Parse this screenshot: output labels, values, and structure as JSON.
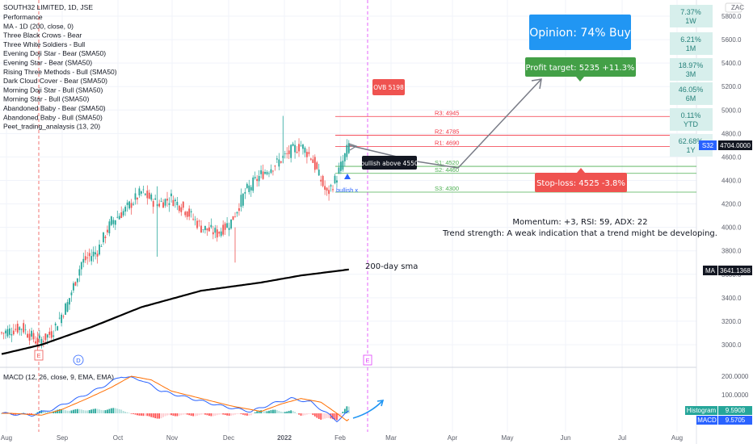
{
  "legend": {
    "symbol": "SOUTH32 LIMITED, 1D, JSE",
    "items": [
      "Performance",
      "MA - 1D (200, close, 0)",
      "Three Black Crows - Bear",
      "Three White Soldiers - Bull",
      "Evening Doji Star - Bear (SMA50)",
      "Evening Star - Bear (SMA50)",
      "Rising Three Methods - Bull (SMA50)",
      "Dark Cloud Cover - Bear (SMA50)",
      "Morning Doji Star - Bull (SMA50)",
      "Morning Star - Bull (SMA50)",
      "Abandoned Baby - Bear (SMA50)",
      "Abandoned Baby - Bull (SMA50)",
      "Peet_trading_analaysis (13, 20)"
    ]
  },
  "currency": "ZAC",
  "performance": [
    {
      "value": "7.37%",
      "period": "1W"
    },
    {
      "value": "6.21%",
      "period": "1M"
    },
    {
      "value": "18.97%",
      "period": "3M"
    },
    {
      "value": "46.05%",
      "period": "6M"
    },
    {
      "value": "0.11%",
      "period": "YTD"
    },
    {
      "value": "62.68%",
      "period": "1Y"
    }
  ],
  "opinion": "Opinion: 74% Buy",
  "profit_target": "Profit target: 5235 +11.3%",
  "stop_loss": "Stop-loss: 4525 -3.8%",
  "ovb_label": "OVB 5198",
  "bullish_tag": "bullish above 4550",
  "bullish_x": "bullish x",
  "momentum": "Momentum: +3, RSI: 59, ADX: 22",
  "trend_strength": "Trend strength: A weak indication that a trend might be developing.",
  "sma_label": "200-day sma",
  "levels": [
    {
      "label": "R3: 4945",
      "value": 4945,
      "color": "#f23645"
    },
    {
      "label": "R2: 4785",
      "value": 4785,
      "color": "#f23645"
    },
    {
      "label": "R1: 4690",
      "value": 4690,
      "color": "#f23645"
    },
    {
      "label": "S1: 4520",
      "value": 4520,
      "color": "#4caf50"
    },
    {
      "label": "S2: 4460",
      "value": 4460,
      "color": "#4caf50"
    },
    {
      "label": "S3: 4300",
      "value": 4300,
      "color": "#4caf50"
    }
  ],
  "price_badges": {
    "ticker": "S32",
    "last": "4704.0000",
    "ma_name": "MA",
    "ma_value": "3641.1368"
  },
  "macd": {
    "title": "MACD (12, 26, close, 9, EMA, EMA)",
    "axis": [
      "200.0000",
      "100.0000"
    ],
    "histogram_label": "Histogram",
    "histogram_value": "9.5908",
    "macd_label": "MACD",
    "macd_value": "9.5705"
  },
  "event_markers": [
    "E",
    "D",
    "E"
  ],
  "colors": {
    "up": "#26a69a",
    "down": "#ef5350",
    "ma": "#000000",
    "macd": "#2962ff",
    "signal": "#ff6d00",
    "opinion": "#2196f3",
    "target": "#43a047",
    "stop": "#ef5350"
  },
  "chart_data": {
    "type": "candlestick",
    "price_axis_ticks": [
      5800,
      5600,
      5400,
      5200,
      5000,
      4800,
      4600,
      4400,
      4200,
      4000,
      3800,
      3600,
      3400,
      3200,
      3000
    ],
    "x_tick_labels": [
      "Aug",
      "Sep",
      "Oct",
      "Nov",
      "Dec",
      "2022",
      "Feb",
      "Mar",
      "Apr",
      "May",
      "Jun",
      "Jul",
      "Aug"
    ],
    "price_anchors": [
      [
        0,
        3100
      ],
      [
        10,
        3150
      ],
      [
        18,
        3020
      ],
      [
        25,
        3100
      ],
      [
        33,
        3350
      ],
      [
        40,
        3700
      ],
      [
        48,
        3800
      ],
      [
        55,
        4050
      ],
      [
        62,
        4150
      ],
      [
        70,
        4300
      ],
      [
        78,
        4200
      ],
      [
        85,
        4250
      ],
      [
        92,
        4150
      ],
      [
        100,
        4000
      ],
      [
        108,
        3950
      ],
      [
        115,
        4050
      ],
      [
        122,
        4300
      ],
      [
        130,
        4450
      ],
      [
        138,
        4550
      ],
      [
        145,
        4650
      ],
      [
        150,
        4700
      ],
      [
        155,
        4600
      ],
      [
        160,
        4400
      ],
      [
        163,
        4280
      ],
      [
        167,
        4400
      ],
      [
        171,
        4560
      ],
      [
        174,
        4704
      ]
    ],
    "ma200_anchors": [
      [
        0,
        2920
      ],
      [
        20,
        3000
      ],
      [
        45,
        3150
      ],
      [
        70,
        3320
      ],
      [
        100,
        3460
      ],
      [
        130,
        3530
      ],
      [
        150,
        3590
      ],
      [
        174,
        3641
      ]
    ],
    "macd_anchors": [
      [
        0,
        0
      ],
      [
        15,
        -10
      ],
      [
        25,
        20
      ],
      [
        38,
        80
      ],
      [
        50,
        140
      ],
      [
        60,
        200
      ],
      [
        70,
        180
      ],
      [
        80,
        120
      ],
      [
        95,
        80
      ],
      [
        110,
        40
      ],
      [
        125,
        10
      ],
      [
        135,
        50
      ],
      [
        145,
        80
      ],
      [
        155,
        60
      ],
      [
        163,
        0
      ],
      [
        168,
        -40
      ],
      [
        174,
        9.6
      ]
    ]
  }
}
